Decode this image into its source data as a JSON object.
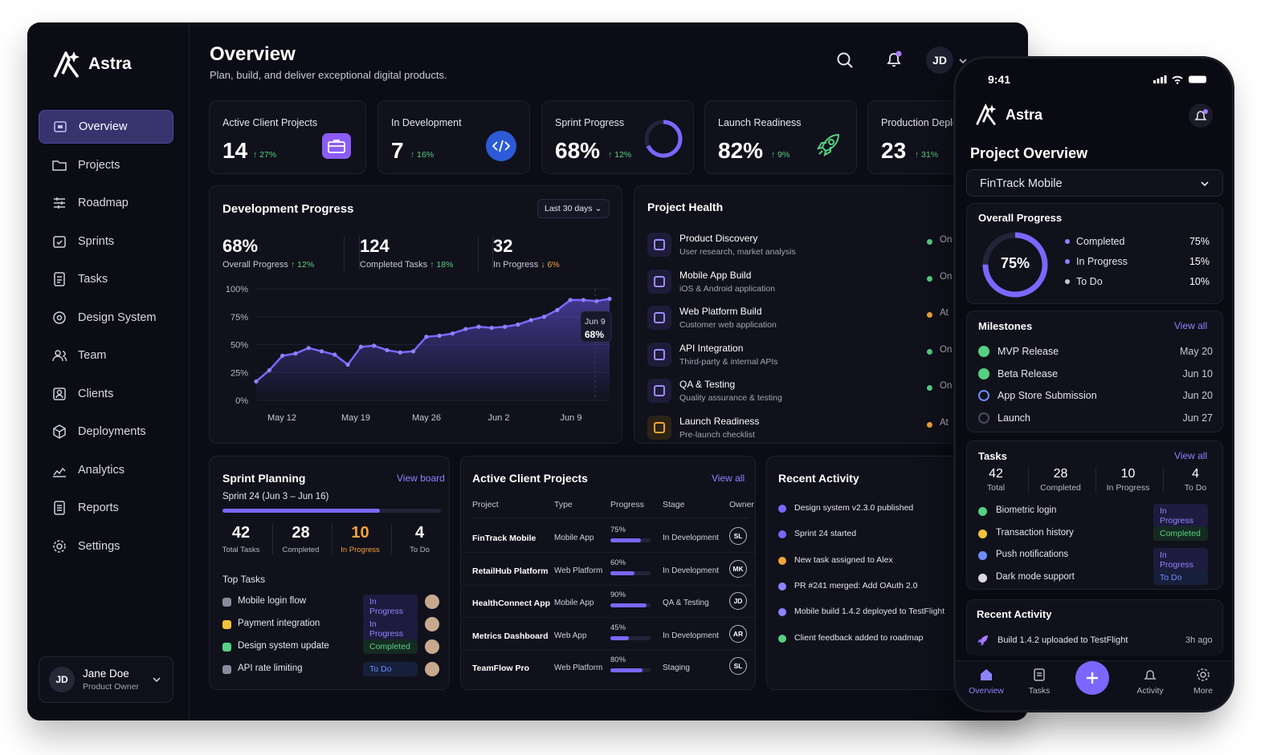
{
  "app": {
    "name": "Astra"
  },
  "header": {
    "title": "Overview",
    "subtitle": "Plan, build, and deliver exceptional digital products.",
    "avatar": "JD"
  },
  "sidebar": {
    "items": [
      {
        "label": "Overview",
        "icon": "dashboard-icon"
      },
      {
        "label": "Projects",
        "icon": "folder-icon"
      },
      {
        "label": "Roadmap",
        "icon": "roadmap-icon"
      },
      {
        "label": "Sprints",
        "icon": "sprint-icon"
      },
      {
        "label": "Tasks",
        "icon": "tasks-icon"
      },
      {
        "label": "Design System",
        "icon": "design-icon"
      },
      {
        "label": "Team",
        "icon": "team-icon"
      },
      {
        "label": "Clients",
        "icon": "clients-icon"
      },
      {
        "label": "Deployments",
        "icon": "deploy-icon"
      },
      {
        "label": "Analytics",
        "icon": "analytics-icon"
      },
      {
        "label": "Reports",
        "icon": "reports-icon"
      },
      {
        "label": "Settings",
        "icon": "settings-icon"
      }
    ],
    "user": {
      "initials": "JD",
      "name": "Jane Doe",
      "role": "Product Owner"
    }
  },
  "stats": [
    {
      "label": "Active Client Projects",
      "value": "14",
      "change": "↑ 27%"
    },
    {
      "label": "In Development",
      "value": "7",
      "change": "↑ 16%"
    },
    {
      "label": "Sprint Progress",
      "value": "68%",
      "change": "↑ 12%"
    },
    {
      "label": "Launch Readiness",
      "value": "82%",
      "change": "↑ 9%"
    },
    {
      "label": "Production Deple",
      "value": "23",
      "change": "↑ 31%"
    }
  ],
  "dev": {
    "title": "Development Progress",
    "range": "Last 30 days",
    "kpis": [
      {
        "value": "68%",
        "label": "Overall Progress",
        "change": "↑ 12%"
      },
      {
        "value": "124",
        "label": "Completed Tasks",
        "change": "↑ 18%"
      },
      {
        "value": "32",
        "label": "In Progress",
        "change": "↓ 6%"
      }
    ],
    "tooltip_date": "Jun 9",
    "tooltip_value": "68%"
  },
  "chart_data": {
    "type": "area",
    "x_labels": [
      "May 12",
      "May 19",
      "May 26",
      "Jun 2",
      "Jun 9"
    ],
    "y_ticks": [
      "100%",
      "75%",
      "50%",
      "25%",
      "0%"
    ],
    "ylim": [
      0,
      100
    ],
    "values": [
      17,
      27,
      40,
      42,
      47,
      44,
      41,
      32,
      48,
      49,
      45,
      43,
      44,
      57,
      58,
      60,
      64,
      66,
      65,
      66,
      68,
      72,
      75,
      81,
      90,
      90,
      89,
      91
    ]
  },
  "health": {
    "title": "Project Health",
    "items": [
      {
        "name": "Product Discovery",
        "desc": "User research, market analysis",
        "status": "On",
        "color": "#56d082"
      },
      {
        "name": "Mobile App Build",
        "desc": "iOS & Android application",
        "status": "On",
        "color": "#56d082"
      },
      {
        "name": "Web Platform Build",
        "desc": "Customer web application",
        "status": "At",
        "color": "#f2a33a"
      },
      {
        "name": "API Integration",
        "desc": "Third-party & internal APIs",
        "status": "On",
        "color": "#56d082"
      },
      {
        "name": "QA & Testing",
        "desc": "Quality assurance & testing",
        "status": "On",
        "color": "#56d082"
      },
      {
        "name": "Launch Readiness",
        "desc": "Pre-launch checklist",
        "status": "At",
        "color": "#f2a33a"
      }
    ]
  },
  "sprint": {
    "title": "Sprint Planning",
    "link": "View board",
    "subtitle": "Sprint 24 (Jun 3 – Jun 16)",
    "progress": 0.72,
    "kpis": [
      {
        "value": "42",
        "label": "Total Tasks"
      },
      {
        "value": "28",
        "label": "Completed"
      },
      {
        "value": "10",
        "label": "In Progress"
      },
      {
        "value": "4",
        "label": "To Do"
      }
    ],
    "top_title": "Top Tasks",
    "tasks": [
      {
        "name": "Mobile login flow",
        "status": "In Progress"
      },
      {
        "name": "Payment integration",
        "status": "In Progress"
      },
      {
        "name": "Design system update",
        "status": "Completed"
      },
      {
        "name": "API rate limiting",
        "status": "To Do"
      }
    ]
  },
  "projects": {
    "title": "Active Client Projects",
    "link": "View all",
    "headers": [
      "Project",
      "Type",
      "Progress",
      "Stage",
      "Owner"
    ],
    "rows": [
      {
        "name": "FinTrack Mobile",
        "type": "Mobile App",
        "progress": "75%",
        "pct": 0.75,
        "stage": "In Development",
        "owner": "SL"
      },
      {
        "name": "RetailHub Platform",
        "type": "Web Platform",
        "progress": "60%",
        "pct": 0.6,
        "stage": "In Development",
        "owner": "MK"
      },
      {
        "name": "HealthConnect App",
        "type": "Mobile App",
        "progress": "90%",
        "pct": 0.9,
        "stage": "QA & Testing",
        "owner": "JD"
      },
      {
        "name": "Metrics Dashboard",
        "type": "Web App",
        "progress": "45%",
        "pct": 0.45,
        "stage": "In Development",
        "owner": "AR"
      },
      {
        "name": "TeamFlow Pro",
        "type": "Web Platform",
        "progress": "80%",
        "pct": 0.8,
        "stage": "Staging",
        "owner": "SL"
      }
    ]
  },
  "activity": {
    "title": "Recent Activity",
    "items": [
      {
        "text": "Design system v2.3.0 published",
        "color": "#7b67ff"
      },
      {
        "text": "Sprint 24 started",
        "color": "#7b67ff"
      },
      {
        "text": "New task assigned to Alex",
        "color": "#f2a33a"
      },
      {
        "text": "PR #241 merged: Add OAuth 2.0",
        "color": "#8c84ff"
      },
      {
        "text": "Mobile build 1.4.2 deployed to TestFlight",
        "color": "#8c84ff"
      },
      {
        "text": "Client feedback added to roadmap",
        "color": "#56d082"
      }
    ]
  },
  "phone": {
    "time": "9:41",
    "app": "Astra",
    "title": "Project Overview",
    "project": "FinTrack Mobile",
    "overall": {
      "title": "Overall Progress",
      "value": "75%",
      "legend": [
        {
          "label": "Completed",
          "value": "75%",
          "color": "#8c84ff"
        },
        {
          "label": "In Progress",
          "value": "15%",
          "color": "#8c84ff"
        },
        {
          "label": "To Do",
          "value": "10%",
          "color": "#c7c6d4"
        }
      ]
    },
    "milestones": {
      "title": "Milestones",
      "link": "View all",
      "items": [
        {
          "name": "MVP Release",
          "date": "May 20",
          "state": "done"
        },
        {
          "name": "Beta Release",
          "date": "Jun 10",
          "state": "done"
        },
        {
          "name": "App Store Submission",
          "date": "Jun 20",
          "state": "active"
        },
        {
          "name": "Launch",
          "date": "Jun 27",
          "state": "pending"
        }
      ]
    },
    "tasks": {
      "title": "Tasks",
      "link": "View all",
      "kpis": [
        {
          "value": "42",
          "label": "Total"
        },
        {
          "value": "28",
          "label": "Completed"
        },
        {
          "value": "10",
          "label": "In Progress"
        },
        {
          "value": "4",
          "label": "To Do"
        }
      ],
      "items": [
        {
          "name": "Biometric login",
          "status": "In Progress",
          "color": "#56d082"
        },
        {
          "name": "Transaction history",
          "status": "Completed",
          "color": "#f2c23a"
        },
        {
          "name": "Push notifications",
          "status": "In Progress",
          "color": "#6f8dff"
        },
        {
          "name": "Dark mode support",
          "status": "To Do",
          "color": "#d9d8e4"
        }
      ]
    },
    "activity": {
      "title": "Recent Activity",
      "text": "Build 1.4.2 uploaded to TestFlight",
      "time": "3h ago"
    },
    "tabs": [
      {
        "label": "Overview"
      },
      {
        "label": "Tasks"
      },
      {
        "label": "Activity"
      },
      {
        "label": "More"
      }
    ]
  }
}
